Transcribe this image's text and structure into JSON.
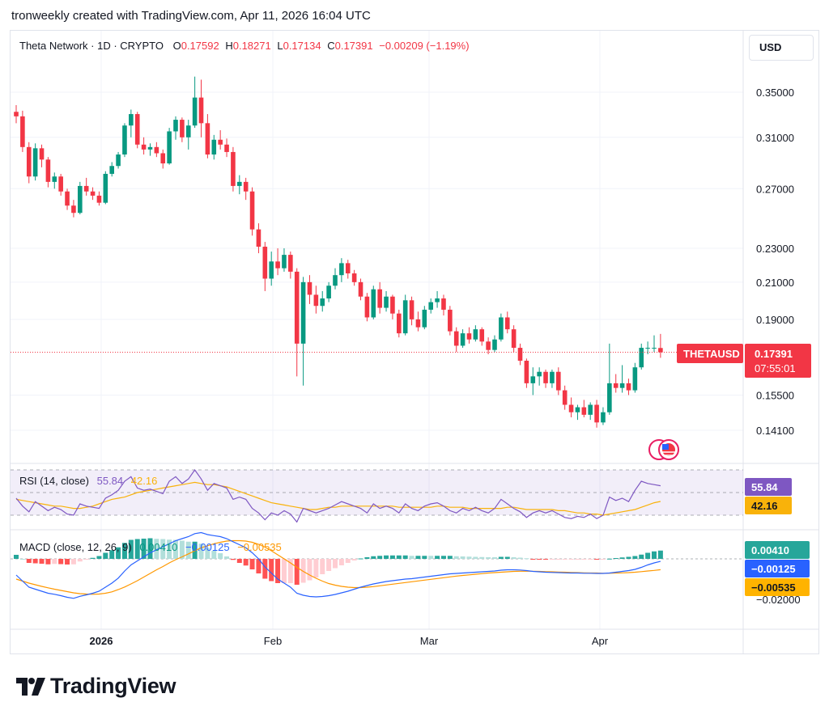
{
  "header": {
    "text": "tronweekly created with TradingView.com, Apr 11, 2026 16:04 UTC"
  },
  "legend": {
    "symbol": "Theta Network · 1D · CRYPTO",
    "o_label": "O",
    "o": "0.17592",
    "h_label": "H",
    "h": "0.18271",
    "l_label": "L",
    "l": "0.17134",
    "c_label": "C",
    "c": "0.17391",
    "change": "−0.00209 (−1.19%)"
  },
  "currency": "USD",
  "price_label": {
    "ticker": "THETAUSD",
    "price": "0.17391",
    "countdown": "07:55:01"
  },
  "rsi": {
    "title": "RSI (14, close)",
    "value": "55.84",
    "ma": "42.16"
  },
  "macd": {
    "title": "MACD (close, 12, 26, 9)",
    "hist": "0.00410",
    "macd": "−0.00125",
    "signal": "−0.00535"
  },
  "footer": {
    "brand": "TradingView"
  },
  "colors": {
    "up": "#089981",
    "down": "#f23645",
    "rsi_line": "#7e57c2",
    "rsi_ma": "#f9b20a",
    "macd_line": "#2962ff",
    "signal_line": "#ff9800"
  },
  "chart_data": {
    "type": "candlestick",
    "symbol": "THETAUSD",
    "interval": "1D",
    "x_labels": [
      "2026",
      "Feb",
      "Mar",
      "Apr"
    ],
    "y_ticks": [
      "0.35000",
      "0.31000",
      "0.27000",
      "0.23000",
      "0.21000",
      "0.19000",
      "0.15500",
      "0.14100"
    ],
    "y_tick_values": [
      0.35,
      0.31,
      0.27,
      0.23,
      0.21,
      0.19,
      0.155,
      0.141
    ],
    "y_log_scale": true,
    "last_close": 0.17391,
    "candles": [
      [
        0.332,
        0.338,
        0.322,
        0.328
      ],
      [
        0.328,
        0.333,
        0.298,
        0.302
      ],
      [
        0.302,
        0.306,
        0.274,
        0.279
      ],
      [
        0.279,
        0.305,
        0.276,
        0.301
      ],
      [
        0.301,
        0.304,
        0.286,
        0.292
      ],
      [
        0.292,
        0.294,
        0.271,
        0.275
      ],
      [
        0.275,
        0.282,
        0.27,
        0.279
      ],
      [
        0.279,
        0.281,
        0.265,
        0.268
      ],
      [
        0.268,
        0.27,
        0.255,
        0.258
      ],
      [
        0.258,
        0.262,
        0.25,
        0.253
      ],
      [
        0.253,
        0.275,
        0.252,
        0.272
      ],
      [
        0.272,
        0.278,
        0.265,
        0.268
      ],
      [
        0.268,
        0.271,
        0.262,
        0.265
      ],
      [
        0.265,
        0.268,
        0.258,
        0.26
      ],
      [
        0.26,
        0.283,
        0.259,
        0.281
      ],
      [
        0.281,
        0.29,
        0.279,
        0.287
      ],
      [
        0.287,
        0.298,
        0.285,
        0.296
      ],
      [
        0.296,
        0.322,
        0.294,
        0.32
      ],
      [
        0.32,
        0.334,
        0.31,
        0.33
      ],
      [
        0.33,
        0.332,
        0.301,
        0.304
      ],
      [
        0.304,
        0.31,
        0.296,
        0.3
      ],
      [
        0.3,
        0.305,
        0.295,
        0.302
      ],
      [
        0.302,
        0.306,
        0.294,
        0.297
      ],
      [
        0.297,
        0.3,
        0.285,
        0.289
      ],
      [
        0.289,
        0.318,
        0.288,
        0.315
      ],
      [
        0.315,
        0.328,
        0.308,
        0.325
      ],
      [
        0.325,
        0.327,
        0.306,
        0.31
      ],
      [
        0.31,
        0.325,
        0.3,
        0.32
      ],
      [
        0.32,
        0.365,
        0.318,
        0.345
      ],
      [
        0.345,
        0.362,
        0.31,
        0.322
      ],
      [
        0.322,
        0.33,
        0.293,
        0.296
      ],
      [
        0.296,
        0.312,
        0.292,
        0.308
      ],
      [
        0.308,
        0.316,
        0.3,
        0.304
      ],
      [
        0.304,
        0.309,
        0.294,
        0.298
      ],
      [
        0.298,
        0.302,
        0.268,
        0.272
      ],
      [
        0.272,
        0.28,
        0.266,
        0.275
      ],
      [
        0.275,
        0.278,
        0.262,
        0.268
      ],
      [
        0.268,
        0.271,
        0.238,
        0.242
      ],
      [
        0.242,
        0.246,
        0.227,
        0.231
      ],
      [
        0.231,
        0.234,
        0.205,
        0.212
      ],
      [
        0.212,
        0.228,
        0.208,
        0.222
      ],
      [
        0.222,
        0.23,
        0.214,
        0.218
      ],
      [
        0.218,
        0.23,
        0.216,
        0.226
      ],
      [
        0.226,
        0.228,
        0.212,
        0.216
      ],
      [
        0.216,
        0.218,
        0.163,
        0.178
      ],
      [
        0.178,
        0.213,
        0.159,
        0.21
      ],
      [
        0.21,
        0.214,
        0.198,
        0.203
      ],
      [
        0.203,
        0.208,
        0.193,
        0.197
      ],
      [
        0.197,
        0.205,
        0.194,
        0.201
      ],
      [
        0.201,
        0.21,
        0.199,
        0.208
      ],
      [
        0.208,
        0.218,
        0.206,
        0.214
      ],
      [
        0.214,
        0.224,
        0.21,
        0.221
      ],
      [
        0.221,
        0.223,
        0.212,
        0.215
      ],
      [
        0.215,
        0.217,
        0.208,
        0.21
      ],
      [
        0.21,
        0.212,
        0.2,
        0.202
      ],
      [
        0.202,
        0.204,
        0.189,
        0.191
      ],
      [
        0.191,
        0.208,
        0.19,
        0.206
      ],
      [
        0.206,
        0.21,
        0.193,
        0.196
      ],
      [
        0.196,
        0.205,
        0.194,
        0.202
      ],
      [
        0.202,
        0.203,
        0.19,
        0.193
      ],
      [
        0.193,
        0.195,
        0.181,
        0.183
      ],
      [
        0.183,
        0.203,
        0.182,
        0.2
      ],
      [
        0.2,
        0.202,
        0.187,
        0.19
      ],
      [
        0.19,
        0.194,
        0.184,
        0.186
      ],
      [
        0.186,
        0.197,
        0.185,
        0.195
      ],
      [
        0.195,
        0.201,
        0.193,
        0.199
      ],
      [
        0.199,
        0.205,
        0.196,
        0.201
      ],
      [
        0.201,
        0.203,
        0.192,
        0.195
      ],
      [
        0.195,
        0.197,
        0.182,
        0.184
      ],
      [
        0.184,
        0.186,
        0.174,
        0.177
      ],
      [
        0.177,
        0.185,
        0.176,
        0.183
      ],
      [
        0.183,
        0.186,
        0.178,
        0.18
      ],
      [
        0.18,
        0.187,
        0.179,
        0.185
      ],
      [
        0.185,
        0.186,
        0.177,
        0.179
      ],
      [
        0.179,
        0.181,
        0.173,
        0.175
      ],
      [
        0.175,
        0.182,
        0.174,
        0.18
      ],
      [
        0.18,
        0.193,
        0.179,
        0.191
      ],
      [
        0.191,
        0.194,
        0.183,
        0.185
      ],
      [
        0.185,
        0.187,
        0.174,
        0.176
      ],
      [
        0.176,
        0.178,
        0.168,
        0.17
      ],
      [
        0.17,
        0.171,
        0.158,
        0.16
      ],
      [
        0.16,
        0.167,
        0.155,
        0.163
      ],
      [
        0.163,
        0.167,
        0.159,
        0.165
      ],
      [
        0.165,
        0.166,
        0.158,
        0.16
      ],
      [
        0.16,
        0.166,
        0.158,
        0.165
      ],
      [
        0.165,
        0.167,
        0.155,
        0.157
      ],
      [
        0.157,
        0.159,
        0.149,
        0.151
      ],
      [
        0.151,
        0.154,
        0.146,
        0.148
      ],
      [
        0.148,
        0.151,
        0.145,
        0.15
      ],
      [
        0.15,
        0.153,
        0.146,
        0.147
      ],
      [
        0.147,
        0.152,
        0.145,
        0.151
      ],
      [
        0.151,
        0.153,
        0.142,
        0.144
      ],
      [
        0.144,
        0.15,
        0.143,
        0.148
      ],
      [
        0.148,
        0.178,
        0.147,
        0.16
      ],
      [
        0.16,
        0.164,
        0.156,
        0.158
      ],
      [
        0.158,
        0.168,
        0.156,
        0.16
      ],
      [
        0.16,
        0.162,
        0.155,
        0.157
      ],
      [
        0.157,
        0.169,
        0.156,
        0.167
      ],
      [
        0.167,
        0.178,
        0.166,
        0.176
      ],
      [
        0.176,
        0.179,
        0.173,
        0.176
      ],
      [
        0.176,
        0.182,
        0.174,
        0.176
      ],
      [
        0.17592,
        0.18271,
        0.17134,
        0.17391
      ]
    ],
    "rsi": {
      "levels": [
        70,
        50,
        30
      ],
      "values": [
        45,
        38,
        33,
        42,
        38,
        34,
        37,
        35,
        31,
        30,
        40,
        38,
        37,
        36,
        45,
        48,
        52,
        60,
        64,
        54,
        52,
        53,
        51,
        49,
        60,
        64,
        58,
        62,
        70,
        62,
        52,
        58,
        56,
        54,
        44,
        46,
        44,
        36,
        32,
        26,
        32,
        30,
        34,
        31,
        24,
        36,
        34,
        32,
        34,
        36,
        39,
        42,
        40,
        38,
        36,
        32,
        40,
        36,
        38,
        36,
        32,
        40,
        36,
        34,
        38,
        40,
        41,
        38,
        34,
        32,
        36,
        34,
        37,
        34,
        32,
        36,
        44,
        40,
        36,
        33,
        28,
        32,
        34,
        32,
        34,
        31,
        28,
        27,
        29,
        28,
        31,
        27,
        30,
        46,
        43,
        45,
        42,
        52,
        60,
        58,
        57,
        56
      ],
      "ma": [
        44,
        43,
        42,
        41,
        40,
        39,
        38,
        38,
        37,
        36,
        36,
        37,
        38,
        40,
        42,
        44,
        45,
        46,
        48,
        50,
        51,
        52,
        53,
        54,
        55,
        56,
        57,
        58,
        59,
        58,
        57,
        57,
        56,
        55,
        53,
        51,
        49,
        47,
        45,
        43,
        41,
        40,
        39,
        38,
        37,
        36,
        35,
        35,
        36,
        37,
        37,
        38,
        38,
        38,
        38,
        38,
        38,
        38,
        38,
        38,
        37,
        37,
        37,
        37,
        37,
        37,
        38,
        38,
        37,
        37,
        37,
        36,
        36,
        36,
        36,
        36,
        36,
        37,
        37,
        36,
        35,
        35,
        35,
        35,
        35,
        34,
        34,
        33,
        32,
        32,
        31,
        31,
        30,
        31,
        32,
        33,
        34,
        35,
        37,
        39,
        41,
        42.16
      ]
    },
    "macd": {
      "macd": [
        -0.008,
        -0.011,
        -0.014,
        -0.015,
        -0.016,
        -0.017,
        -0.0175,
        -0.0182,
        -0.019,
        -0.0195,
        -0.0185,
        -0.0178,
        -0.017,
        -0.016,
        -0.014,
        -0.012,
        -0.0095,
        -0.006,
        -0.003,
        -0.001,
        0.001,
        0.003,
        0.0045,
        0.006,
        0.0075,
        0.009,
        0.01,
        0.011,
        0.0125,
        0.013,
        0.012,
        0.0115,
        0.011,
        0.01,
        0.0085,
        0.007,
        0.0055,
        0.003,
        0.0,
        -0.004,
        -0.007,
        -0.01,
        -0.012,
        -0.014,
        -0.017,
        -0.018,
        -0.0186,
        -0.0188,
        -0.0186,
        -0.0182,
        -0.0176,
        -0.0168,
        -0.016,
        -0.015,
        -0.014,
        -0.0132,
        -0.0124,
        -0.0118,
        -0.0112,
        -0.0108,
        -0.0104,
        -0.01,
        -0.0098,
        -0.0094,
        -0.009,
        -0.0086,
        -0.0082,
        -0.0078,
        -0.0074,
        -0.0072,
        -0.007,
        -0.0068,
        -0.0066,
        -0.0064,
        -0.0062,
        -0.006,
        -0.0056,
        -0.0054,
        -0.0054,
        -0.0055,
        -0.0058,
        -0.0062,
        -0.0064,
        -0.0066,
        -0.0067,
        -0.0068,
        -0.0069,
        -0.007,
        -0.007,
        -0.0071,
        -0.0071,
        -0.0072,
        -0.0072,
        -0.007,
        -0.0066,
        -0.0062,
        -0.0058,
        -0.0052,
        -0.0042,
        -0.003,
        -0.002,
        -0.00125
      ],
      "signal": [
        -0.01,
        -0.011,
        -0.012,
        -0.0128,
        -0.0136,
        -0.0143,
        -0.015,
        -0.0156,
        -0.0162,
        -0.0168,
        -0.0172,
        -0.0174,
        -0.0175,
        -0.0174,
        -0.017,
        -0.0163,
        -0.0152,
        -0.0139,
        -0.0124,
        -0.0108,
        -0.009,
        -0.0072,
        -0.0054,
        -0.0038,
        -0.002,
        -0.0004,
        0.001,
        0.0025,
        0.004,
        0.0055,
        0.0065,
        0.0075,
        0.0082,
        0.0088,
        0.009,
        0.009,
        0.0088,
        0.0082,
        0.0072,
        0.0058,
        0.004,
        0.002,
        0.0,
        -0.002,
        -0.0042,
        -0.0062,
        -0.008,
        -0.0096,
        -0.011,
        -0.0122,
        -0.013,
        -0.0136,
        -0.014,
        -0.0142,
        -0.0142,
        -0.014,
        -0.0137,
        -0.0133,
        -0.0129,
        -0.0125,
        -0.0121,
        -0.0117,
        -0.0113,
        -0.0109,
        -0.0105,
        -0.0101,
        -0.0097,
        -0.0093,
        -0.0089,
        -0.0085,
        -0.0082,
        -0.0079,
        -0.0076,
        -0.0073,
        -0.007,
        -0.0068,
        -0.0066,
        -0.0064,
        -0.0062,
        -0.0061,
        -0.0061,
        -0.0061,
        -0.0062,
        -0.0063,
        -0.0064,
        -0.0065,
        -0.0066,
        -0.0067,
        -0.0068,
        -0.0069,
        -0.007,
        -0.007,
        -0.0071,
        -0.0071,
        -0.007,
        -0.0069,
        -0.0068,
        -0.0066,
        -0.0063,
        -0.006,
        -0.0057,
        -0.00535
      ]
    }
  }
}
